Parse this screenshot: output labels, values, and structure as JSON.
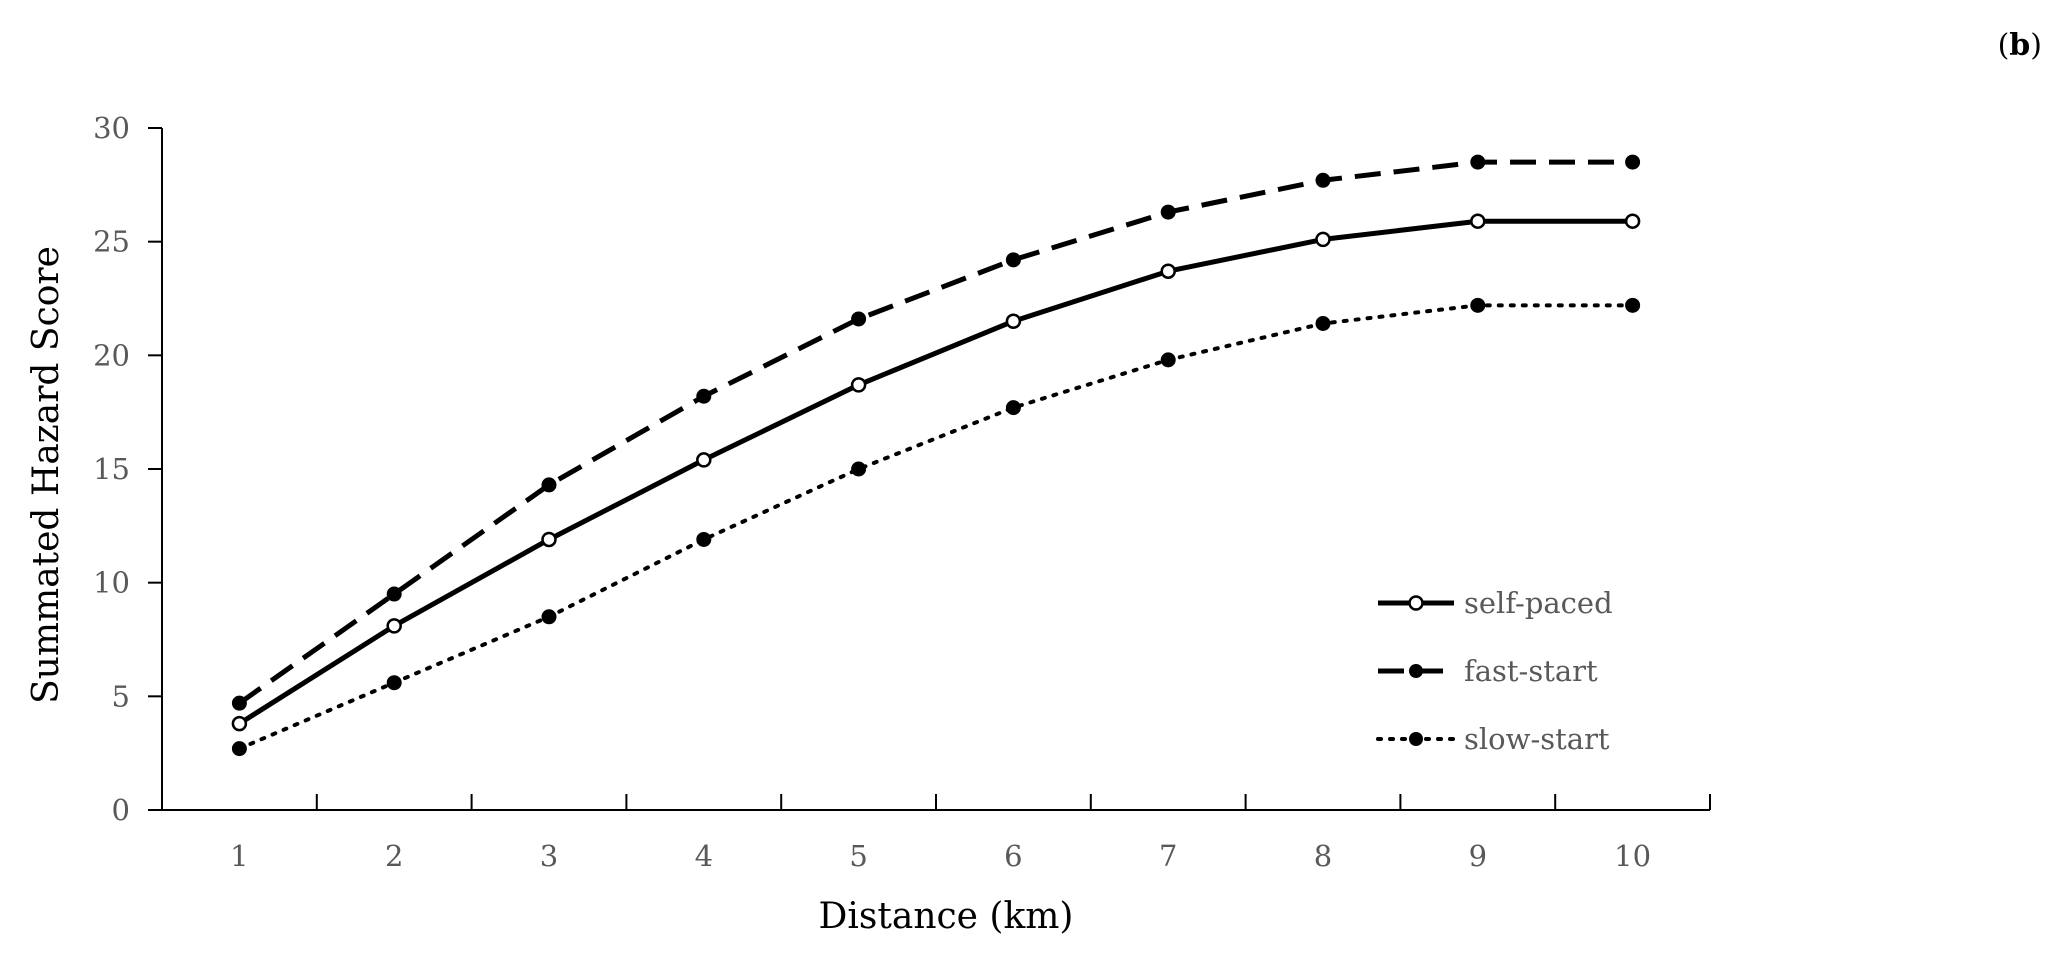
{
  "panel": {
    "open": "(",
    "letter": "b",
    "close": ")"
  },
  "chart_data": {
    "type": "line",
    "title": "",
    "xlabel": "Distance (km)",
    "ylabel": "Summated Hazard Score",
    "x": [
      1,
      2,
      3,
      4,
      5,
      6,
      7,
      8,
      9,
      10
    ],
    "xticks": [
      "1",
      "2",
      "3",
      "4",
      "5",
      "6",
      "7",
      "8",
      "9",
      "10"
    ],
    "xlim": [
      0.5,
      10.5
    ],
    "ylim": [
      0,
      30
    ],
    "yticks": [
      "0",
      "5",
      "10",
      "15",
      "20",
      "25",
      "30"
    ],
    "grid": false,
    "legend_position": "bottom-right",
    "series": [
      {
        "name": "self-paced",
        "style": "solid",
        "marker": "open",
        "values": [
          3.8,
          8.1,
          11.9,
          15.4,
          18.7,
          21.5,
          23.7,
          25.1,
          25.9,
          25.9
        ]
      },
      {
        "name": "fast-start",
        "style": "dashed",
        "marker": "filled",
        "values": [
          4.7,
          9.5,
          14.3,
          18.2,
          21.6,
          24.2,
          26.3,
          27.7,
          28.5,
          28.5
        ]
      },
      {
        "name": "slow-start",
        "style": "dotted",
        "marker": "filled",
        "values": [
          2.7,
          5.6,
          8.5,
          11.9,
          15.0,
          17.7,
          19.8,
          21.4,
          22.2,
          22.2
        ]
      }
    ],
    "colors": {
      "line": "#000000",
      "axis": "#000000",
      "tick_text": "#595959",
      "label_text": "#000000"
    }
  }
}
